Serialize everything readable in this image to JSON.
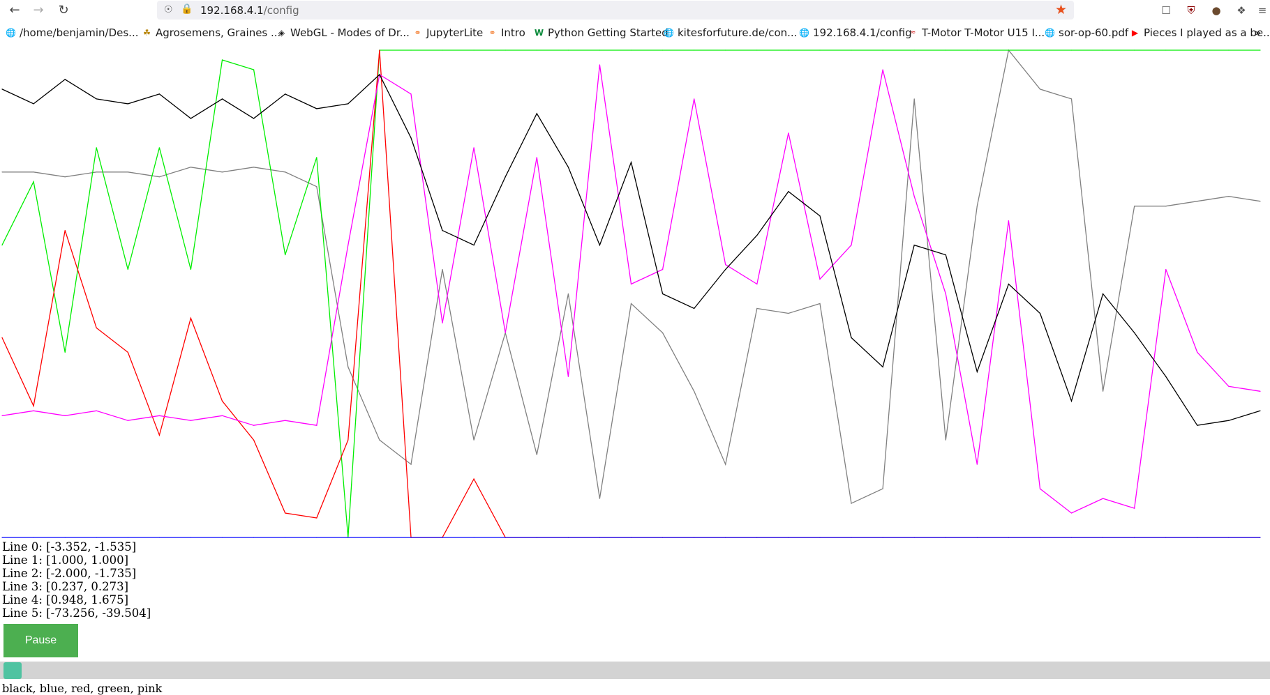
{
  "browser": {
    "url_host": "192.168.4.1",
    "url_path": "/config",
    "bookmarks": [
      {
        "label": "/home/benjamin/Des...",
        "icon": "globe-icon"
      },
      {
        "label": "Agrosemens, Graines ...",
        "icon": "leaf-icon"
      },
      {
        "label": "WebGL - Modes of Dr...",
        "icon": "diamond-icon"
      },
      {
        "label": "JupyterLite",
        "icon": "jupyter-icon"
      },
      {
        "label": "Intro",
        "icon": "jupyter-icon"
      },
      {
        "label": "Python Getting Started",
        "icon": "w-icon"
      },
      {
        "label": "kitesforfuture.de/con...",
        "icon": "globe-icon"
      },
      {
        "label": "192.168.4.1/config",
        "icon": "globe-icon"
      },
      {
        "label": "T-Motor T-Motor U15 I...",
        "icon": "tmotor-icon"
      },
      {
        "label": "sor-op-60.pdf",
        "icon": "globe-icon"
      },
      {
        "label": "Pieces I played as a be...",
        "icon": "youtube-icon"
      }
    ]
  },
  "stats": [
    "Line 0: [-3.352, -1.535]",
    "Line 1: [1.000, 1.000]",
    "Line 2: [-2.000, -1.735]",
    "Line 3: [0.237, 0.273]",
    "Line 4: [0.948, 1.675]",
    "Line 5: [-73.256, -39.504]"
  ],
  "controls": {
    "pause_label": "Pause",
    "slider_value": 0,
    "legend_text": "black, blue, red, green, pink"
  },
  "colors": {
    "line0": "#000000",
    "line1": "#0000ff",
    "line2": "#ff0000",
    "line3": "#00ee00",
    "line4": "#ff00ff",
    "line5": "#808080",
    "pause_bg": "#4caf50"
  },
  "chart_data": {
    "type": "line",
    "x": [
      0,
      1,
      2,
      3,
      4,
      5,
      6,
      7,
      8,
      9,
      10,
      11,
      12,
      13,
      14,
      15,
      16,
      17,
      18,
      19,
      20,
      21,
      22,
      23,
      24,
      25,
      26,
      27,
      28,
      29,
      30,
      31,
      32,
      33,
      34,
      35,
      36,
      37,
      38,
      39,
      40
    ],
    "ylim": [
      0,
      1
    ],
    "series": [
      {
        "color": "#000000",
        "values": [
          0.92,
          0.89,
          0.94,
          0.9,
          0.89,
          0.91,
          0.86,
          0.9,
          0.86,
          0.91,
          0.88,
          0.89,
          0.95,
          0.82,
          0.63,
          0.6,
          0.74,
          0.87,
          0.76,
          0.6,
          0.77,
          0.5,
          0.47,
          0.55,
          0.62,
          0.71,
          0.66,
          0.41,
          0.35,
          0.6,
          0.58,
          0.34,
          0.52,
          0.46,
          0.28,
          0.5,
          0.42,
          0.33,
          0.23,
          0.24,
          0.26
        ]
      },
      {
        "color": "#0000ff",
        "values": [
          0.0,
          0.0,
          0.0,
          0.0,
          0.0,
          0.0,
          0.0,
          0.0,
          0.0,
          0.0,
          0.0,
          0.0,
          0.0,
          0.0,
          0.0,
          0.0,
          0.0,
          0.0,
          0.0,
          0.0,
          0.0,
          0.0,
          0.0,
          0.0,
          0.0,
          0.0,
          0.0,
          0.0,
          0.0,
          0.0,
          0.0,
          0.0,
          0.0,
          0.0,
          0.0,
          0.0,
          0.0,
          0.0,
          0.0,
          0.0,
          0.0
        ]
      },
      {
        "color": "#ff0000",
        "values": [
          0.41,
          0.27,
          0.63,
          0.43,
          0.38,
          0.21,
          0.45,
          0.28,
          0.2,
          0.05,
          0.04,
          0.2,
          1.0,
          0.0,
          0.0,
          0.12,
          0.0,
          0.0,
          0.0,
          0.0,
          0.0,
          0.0,
          0.0,
          0.0,
          0.0,
          0.0,
          0.0,
          0.0,
          0.0,
          0.0,
          0.0,
          0.0,
          0.0,
          0.0,
          0.0,
          0.0,
          0.0,
          0.0,
          0.0,
          0.0,
          0.0
        ]
      },
      {
        "color": "#00ee00",
        "values": [
          0.6,
          0.73,
          0.38,
          0.8,
          0.55,
          0.8,
          0.55,
          0.98,
          0.96,
          0.58,
          0.78,
          0.0,
          1.0,
          1.0,
          1.0,
          1.0,
          1.0,
          1.0,
          1.0,
          1.0,
          1.0,
          1.0,
          1.0,
          1.0,
          1.0,
          1.0,
          1.0,
          1.0,
          1.0,
          1.0,
          1.0,
          1.0,
          1.0,
          1.0,
          1.0,
          1.0,
          1.0,
          1.0,
          1.0,
          1.0,
          1.0
        ]
      },
      {
        "color": "#ff00ff",
        "values": [
          0.25,
          0.26,
          0.25,
          0.26,
          0.24,
          0.25,
          0.24,
          0.25,
          0.23,
          0.24,
          0.23,
          0.6,
          0.95,
          0.91,
          0.44,
          0.8,
          0.42,
          0.78,
          0.33,
          0.97,
          0.52,
          0.55,
          0.9,
          0.56,
          0.52,
          0.83,
          0.53,
          0.6,
          0.96,
          0.7,
          0.5,
          0.15,
          0.65,
          0.1,
          0.05,
          0.08,
          0.06,
          0.55,
          0.38,
          0.31,
          0.3
        ]
      },
      {
        "color": "#808080",
        "values": [
          0.75,
          0.75,
          0.74,
          0.75,
          0.75,
          0.74,
          0.76,
          0.75,
          0.76,
          0.75,
          0.72,
          0.35,
          0.2,
          0.15,
          0.55,
          0.2,
          0.42,
          0.17,
          0.5,
          0.08,
          0.48,
          0.42,
          0.3,
          0.15,
          0.47,
          0.46,
          0.48,
          0.07,
          0.1,
          0.9,
          0.2,
          0.68,
          1.0,
          0.92,
          0.9,
          0.3,
          0.68,
          0.68,
          0.69,
          0.7,
          0.69
        ]
      }
    ]
  }
}
